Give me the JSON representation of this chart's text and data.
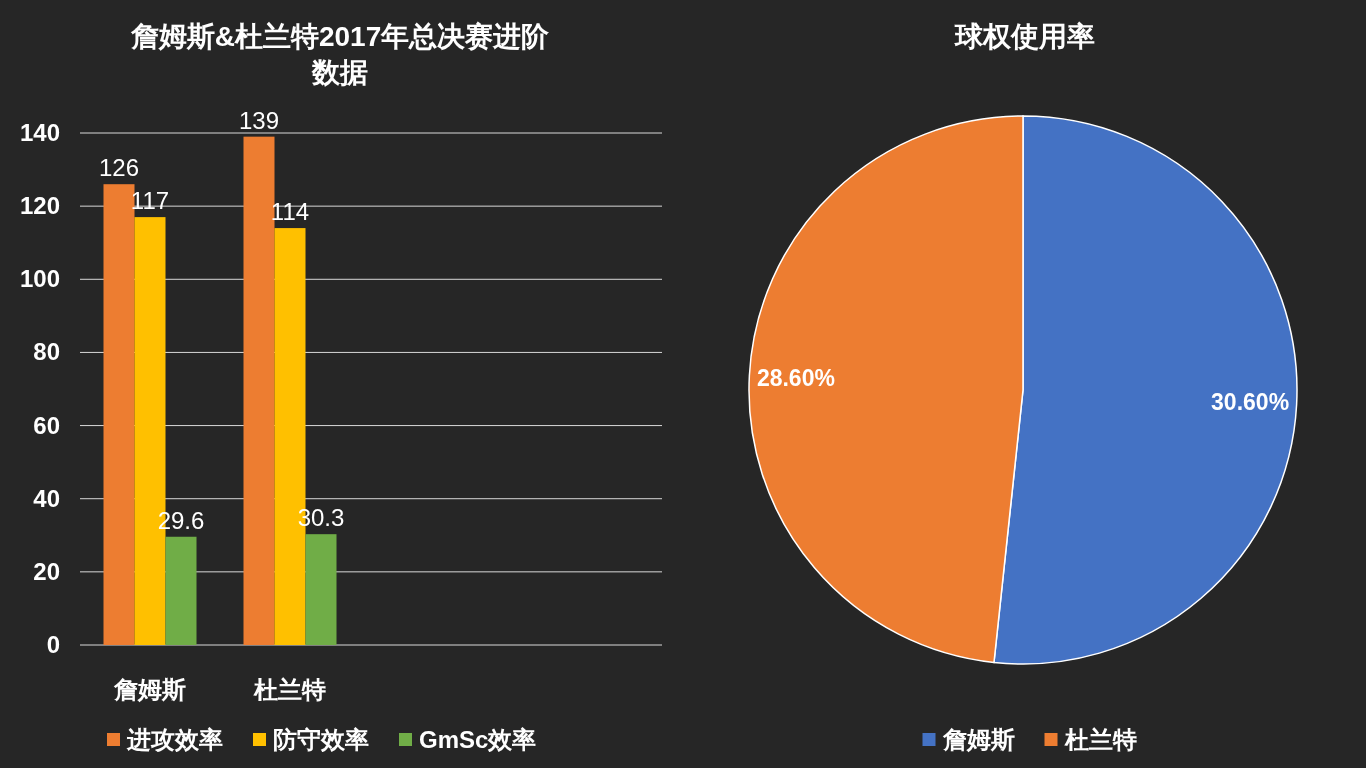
{
  "chart_data": [
    {
      "type": "bar",
      "title": "詹姆斯&杜兰特2017年总决赛进阶数据",
      "categories": [
        "詹姆斯",
        "杜兰特"
      ],
      "series": [
        {
          "name": "进攻效率",
          "color": "#ed7d31",
          "values": [
            126,
            139
          ]
        },
        {
          "name": "防守效率",
          "color": "#ffc000",
          "values": [
            117,
            114
          ]
        },
        {
          "name": "GmSc效率",
          "color": "#70ad47",
          "values": [
            29.6,
            30.3
          ]
        }
      ],
      "ylim": [
        0,
        140
      ],
      "yticks": [
        0,
        20,
        40,
        60,
        80,
        100,
        120,
        140
      ],
      "grid": "y",
      "legend": "bottom",
      "data_labels": true
    },
    {
      "type": "pie",
      "title": "球权使用率",
      "categories": [
        "詹姆斯",
        "杜兰特"
      ],
      "values": [
        30.6,
        28.6
      ],
      "colors": [
        "#4472c4",
        "#ed7d31"
      ],
      "value_labels": [
        "30.60%",
        "28.60%"
      ],
      "legend": "bottom"
    }
  ]
}
